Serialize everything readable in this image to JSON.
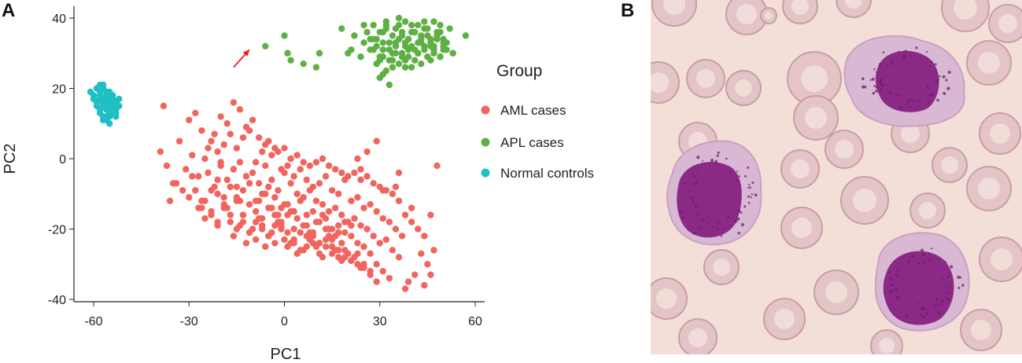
{
  "panels": {
    "a_label": "A",
    "b_label": "B"
  },
  "chart_data": {
    "type": "scatter",
    "title": "",
    "xlabel": "PC1",
    "ylabel": "PC2",
    "xlim": [
      -65,
      63
    ],
    "ylim": [
      -41,
      43
    ],
    "xticks": [
      -60,
      -30,
      0,
      30,
      60
    ],
    "yticks": [
      -40,
      -20,
      0,
      20,
      40
    ],
    "xtick_labels": [
      "-60",
      "-30",
      "0",
      "30",
      "60"
    ],
    "ytick_labels": [
      "-40",
      "-20",
      "0",
      "20",
      "40"
    ],
    "grid": false,
    "legend": {
      "title": "Group",
      "placement": "right",
      "entries": [
        "AML cases",
        "APL cases",
        "Normal controls"
      ]
    },
    "annotation": {
      "type": "arrow",
      "color": "#e8201e",
      "from": [
        -16,
        26
      ],
      "to": [
        -11,
        31
      ]
    },
    "series": [
      {
        "name": "AML cases",
        "color": "#f0665f",
        "x": [
          -38,
          -39,
          -37,
          -33,
          -30,
          -28,
          -26,
          -24,
          -22,
          -20,
          -18,
          -16,
          -14,
          -12,
          -10,
          -8,
          -6,
          -4,
          -2,
          0,
          2,
          4,
          6,
          8,
          10,
          12,
          14,
          16,
          18,
          20,
          22,
          24,
          26,
          28,
          30,
          32,
          34,
          36,
          38,
          40,
          42,
          44,
          46,
          48,
          -34,
          -31,
          -29,
          -27,
          -25,
          -23,
          -21,
          -19,
          -17,
          -15,
          -13,
          -11,
          -9,
          -7,
          -5,
          -3,
          -1,
          1,
          3,
          5,
          7,
          9,
          11,
          13,
          15,
          17,
          19,
          21,
          23,
          25,
          27,
          29,
          31,
          33,
          35,
          37,
          -30,
          -28,
          -26,
          -24,
          -22,
          -20,
          -18,
          -16,
          -14,
          -12,
          -10,
          -8,
          -6,
          -4,
          -2,
          0,
          2,
          4,
          6,
          8,
          10,
          12,
          14,
          16,
          18,
          20,
          22,
          24,
          26,
          28,
          30,
          32,
          34,
          36,
          -27,
          -25,
          -23,
          -21,
          -19,
          -17,
          -15,
          -13,
          -11,
          -9,
          -7,
          -5,
          -3,
          -1,
          1,
          3,
          5,
          7,
          9,
          11,
          13,
          15,
          17,
          19,
          21,
          23,
          25,
          27,
          29,
          31,
          33,
          -25,
          -23,
          -21,
          -19,
          -17,
          -15,
          -13,
          -11,
          -9,
          -7,
          -5,
          -3,
          -1,
          1,
          3,
          5,
          7,
          9,
          11,
          13,
          15,
          17,
          19,
          21,
          23,
          25,
          27,
          29,
          -23,
          -21,
          -19,
          -17,
          -15,
          -13,
          -11,
          -9,
          -7,
          -5,
          -3,
          -1,
          1,
          3,
          5,
          7,
          9,
          11,
          13,
          15,
          17,
          19,
          21,
          23,
          25,
          27,
          -20,
          -18,
          -16,
          -14,
          -12,
          -10,
          -8,
          -6,
          -4,
          -2,
          0,
          2,
          4,
          6,
          8,
          10,
          12,
          14,
          16,
          18,
          20,
          22,
          24,
          -15,
          -13,
          -11,
          -9,
          -7,
          -5,
          -3,
          -1,
          1,
          3,
          5,
          7,
          9,
          11,
          13,
          15,
          17,
          19,
          21,
          -8,
          -6,
          -4,
          -2,
          0,
          2,
          4,
          6,
          8,
          10,
          12,
          14,
          16,
          18,
          -35,
          -36,
          -32,
          -29,
          -26,
          -21,
          -16,
          -14,
          23,
          24,
          26,
          29,
          31,
          35,
          36,
          40,
          43,
          45,
          46,
          47,
          44,
          39,
          41,
          38
        ],
        "y": [
          15,
          2,
          -2,
          5,
          11,
          13,
          8,
          3,
          7,
          12,
          10,
          16,
          14,
          9,
          11,
          6,
          4,
          1,
          2,
          3,
          0,
          1,
          -1,
          -2,
          -1,
          0,
          -2,
          -3,
          -4,
          -5,
          -4,
          -6,
          -5,
          -7,
          -8,
          -9,
          -10,
          -12,
          -16,
          -18,
          -20,
          -22,
          -16,
          -2,
          -7,
          -3,
          1,
          -5,
          0,
          5,
          2,
          4,
          7,
          3,
          6,
          8,
          -1,
          2,
          5,
          3,
          -3,
          -2,
          -5,
          -3,
          -6,
          -8,
          -7,
          -5,
          -9,
          -10,
          -6,
          -12,
          -11,
          -14,
          -13,
          -15,
          -17,
          -18,
          -20,
          -22,
          -11,
          -9,
          -12,
          -4,
          -8,
          -2,
          -6,
          -3,
          -1,
          -5,
          -4,
          -7,
          -2,
          -6,
          -9,
          -4,
          -7,
          -10,
          -11,
          -9,
          -12,
          -13,
          -15,
          -14,
          -16,
          -18,
          -17,
          -19,
          -20,
          -22,
          -24,
          -23,
          -26,
          -28,
          -14,
          -12,
          -16,
          -10,
          -13,
          -8,
          -11,
          -9,
          -7,
          -12,
          -10,
          -8,
          -11,
          -14,
          -13,
          -15,
          -12,
          -16,
          -15,
          -18,
          -17,
          -20,
          -19,
          -21,
          -22,
          -24,
          -25,
          -27,
          -30,
          -32,
          -34,
          -17,
          -15,
          -19,
          -14,
          -18,
          -12,
          -16,
          -13,
          -15,
          -17,
          -14,
          -19,
          -18,
          -16,
          -20,
          -21,
          -19,
          -22,
          -24,
          -23,
          -25,
          -26,
          -28,
          -29,
          -30,
          -31,
          -33,
          -35,
          -9,
          -6,
          -11,
          -16,
          -20,
          -18,
          -21,
          -23,
          -19,
          -22,
          -24,
          -20,
          -25,
          -23,
          -26,
          -22,
          -24,
          -27,
          -25,
          -27,
          -28,
          -26,
          -29,
          -27,
          -30,
          -32,
          -1,
          -14,
          -22,
          -19,
          -24,
          -20,
          -17,
          -25,
          -21,
          -18,
          -23,
          -24,
          -27,
          -26,
          -23,
          -25,
          -28,
          -22,
          -26,
          -29,
          -27,
          -28,
          -31,
          -8,
          -16,
          -21,
          -18,
          -20,
          -22,
          -16,
          -19,
          -21,
          -24,
          -26,
          -25,
          -21,
          -24,
          -20,
          -23,
          -21,
          -18,
          -19,
          -12,
          -10,
          -14,
          -16,
          -13,
          -15,
          -17,
          -19,
          -21,
          -18,
          -16,
          -20,
          -22,
          -24,
          -7,
          -12,
          -9,
          -5,
          -14,
          -18,
          -3,
          -12,
          0,
          -3,
          2,
          5,
          -9,
          -8,
          -4,
          -14,
          -27,
          -30,
          -33,
          -26,
          -36,
          -35,
          -33,
          -37
        ]
      },
      {
        "name": "APL cases",
        "color": "#5fb044",
        "x": [
          -6,
          0,
          1,
          2,
          6,
          10,
          11,
          18,
          20,
          21,
          22,
          24,
          25,
          26,
          27,
          28,
          29,
          30,
          31,
          32,
          33,
          34,
          35,
          36,
          37,
          38,
          39,
          40,
          41,
          42,
          43,
          44,
          45,
          46,
          47,
          48,
          49,
          50,
          51,
          52,
          53,
          57,
          28,
          29,
          30,
          31,
          32,
          33,
          34,
          35,
          36,
          37,
          38,
          39,
          40,
          41,
          42,
          43,
          44,
          45,
          46,
          47,
          48,
          49,
          50,
          51,
          30,
          31,
          32,
          34,
          35,
          36,
          37,
          38,
          39,
          40,
          41,
          42,
          43,
          44,
          45,
          46,
          47,
          48,
          49,
          50,
          29,
          31,
          32,
          33,
          34,
          35,
          36,
          37,
          38,
          39,
          40,
          41,
          42,
          43,
          44,
          46,
          47,
          49,
          50,
          30,
          33,
          38,
          25,
          27,
          28,
          29,
          31
        ],
        "y": [
          32,
          35,
          30,
          28,
          27,
          26,
          30,
          37,
          30,
          31,
          35,
          29,
          33,
          36,
          31,
          38,
          34,
          28,
          36,
          38,
          33,
          30,
          37,
          40,
          35,
          39,
          34,
          36,
          31,
          38,
          33,
          37,
          35,
          32,
          39,
          34,
          36,
          31,
          33,
          37,
          30,
          35,
          34,
          32,
          36,
          33,
          39,
          31,
          35,
          33,
          38,
          36,
          32,
          34,
          38,
          36,
          33,
          35,
          39,
          37,
          34,
          32,
          36,
          38,
          33,
          31,
          29,
          31,
          37,
          28,
          32,
          34,
          30,
          33,
          29,
          32,
          36,
          30,
          34,
          31,
          29,
          33,
          30,
          35,
          29,
          34,
          27,
          29,
          25,
          28,
          26,
          30,
          27,
          29,
          28,
          31,
          26,
          28,
          30,
          27,
          32,
          28,
          31,
          29,
          32,
          23,
          21,
          26,
          38,
          34,
          31,
          27,
          24
        ]
      },
      {
        "name": "Normal controls",
        "color": "#1fbfc4",
        "x": [
          -61,
          -60,
          -59,
          -58,
          -57,
          -56,
          -55,
          -54,
          -53,
          -52,
          -60,
          -59,
          -58,
          -57,
          -56,
          -55,
          -54,
          -53,
          -59,
          -58,
          -57,
          -56,
          -55,
          -54,
          -53,
          -52,
          -58,
          -57,
          -56,
          -55,
          -54,
          -53,
          -57,
          -56,
          -55,
          -54,
          -56,
          -55,
          -57,
          -58,
          -59,
          -56,
          -55,
          -54,
          -57,
          -58
        ],
        "y": [
          19,
          18,
          20,
          19,
          21,
          18,
          19,
          17,
          16,
          17,
          17,
          16,
          18,
          17,
          19,
          16,
          15,
          14,
          15,
          14,
          16,
          15,
          17,
          14,
          13,
          15,
          13,
          12,
          14,
          13,
          15,
          12,
          11,
          12,
          10,
          13,
          11,
          14,
          20,
          21,
          20,
          16,
          12,
          18,
          15,
          17
        ]
      }
    ]
  },
  "micrograph": {
    "background": "#f3dfd8",
    "rbc_color": "#e4c4c6",
    "rbc_edge": "#c79fa5",
    "cytoplasm_color": "#d9b8d3",
    "nucleus_color": "#8b2a86",
    "granule_color": "#6b1f6b"
  }
}
